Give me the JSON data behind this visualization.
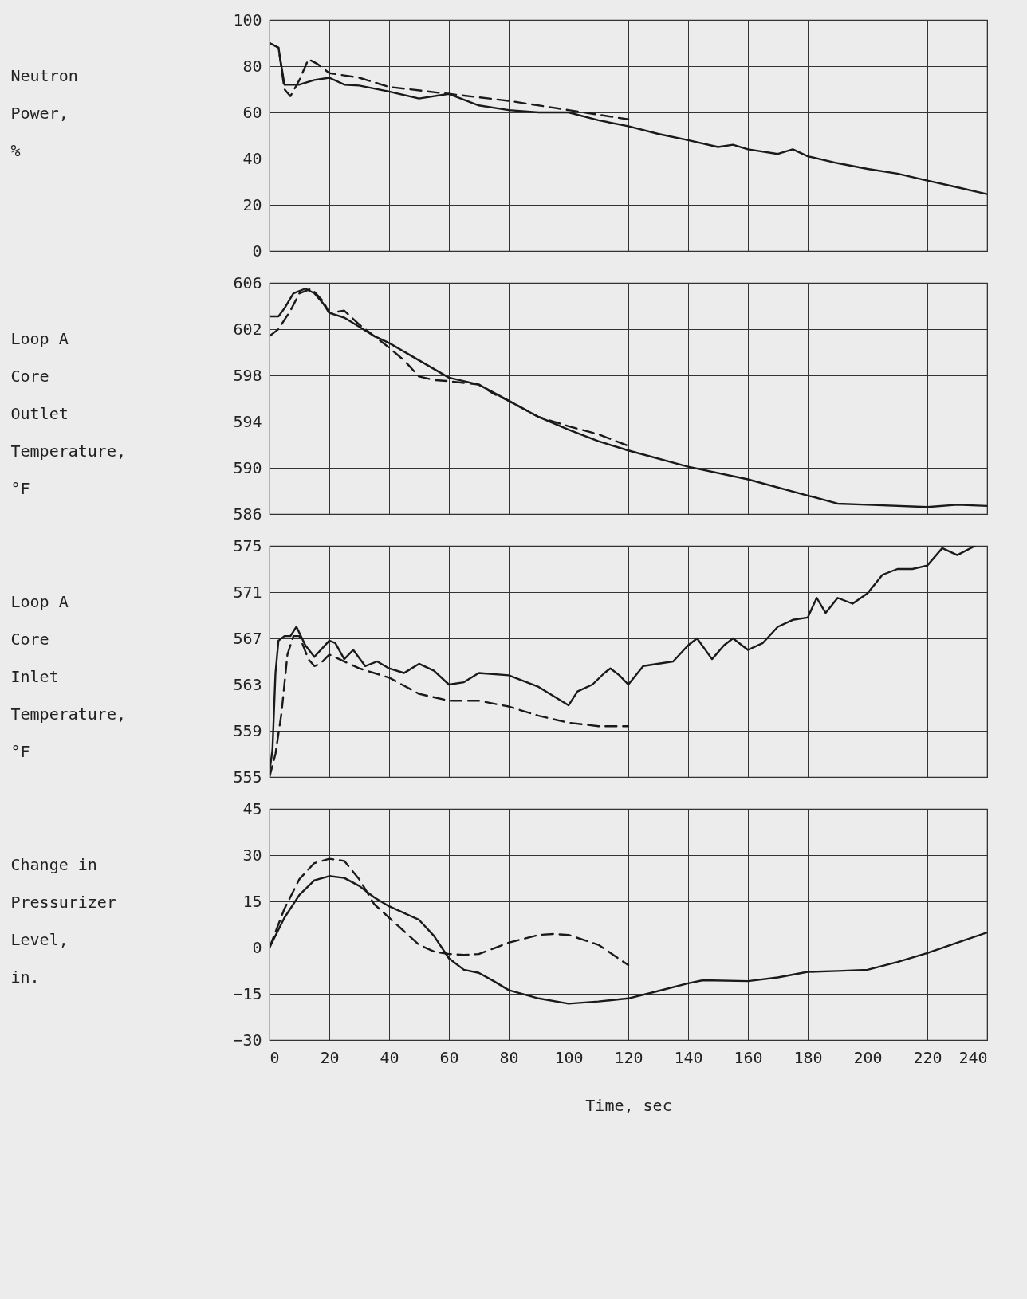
{
  "chart_data": [
    {
      "type": "line",
      "ylabel": "Neutron\nPower,\n%",
      "xlim": [
        0,
        240
      ],
      "xticks": [
        0,
        20,
        40,
        60,
        80,
        100,
        120,
        140,
        160,
        180,
        200,
        220,
        240
      ],
      "ylim": [
        0,
        100
      ],
      "yticks": [
        0,
        20,
        40,
        60,
        80,
        100
      ],
      "grid": true,
      "tick_labels": "y",
      "series": [
        {
          "color": "#1a1a1a",
          "line_style": "solid",
          "x": [
            0,
            3,
            5,
            10,
            15,
            20,
            25,
            30,
            40,
            50,
            60,
            70,
            80,
            90,
            100,
            110,
            120,
            130,
            140,
            150,
            155,
            160,
            170,
            175,
            180,
            190,
            200,
            210,
            220,
            230,
            240
          ],
          "values": [
            90,
            88,
            72,
            72,
            74,
            75,
            72,
            71.6,
            69,
            66,
            68,
            63,
            61,
            60,
            60,
            56.6,
            54,
            50.7,
            48,
            45,
            46,
            44,
            42,
            44,
            41,
            38,
            35.5,
            33.5,
            30.5,
            27.6,
            24.6
          ]
        },
        {
          "color": "#1a1a1a",
          "line_style": "dashed",
          "x": [
            0,
            3,
            5,
            7,
            10,
            13,
            16,
            20,
            25,
            30,
            40,
            60,
            80,
            100,
            120
          ],
          "values": [
            90,
            88,
            70,
            67,
            74,
            83,
            81,
            77,
            76,
            75,
            71,
            68,
            65,
            61,
            57
          ]
        }
      ]
    },
    {
      "type": "line",
      "ylabel": "Loop A\nCore\nOutlet\nTemperature,\n°F",
      "xlim": [
        0,
        240
      ],
      "xticks": [
        0,
        20,
        40,
        60,
        80,
        100,
        120,
        140,
        160,
        180,
        200,
        220,
        240
      ],
      "ylim": [
        586,
        606
      ],
      "yticks": [
        586,
        590,
        594,
        598,
        602,
        606
      ],
      "grid": true,
      "tick_labels": "y",
      "series": [
        {
          "color": "#1a1a1a",
          "line_style": "solid",
          "x": [
            0,
            3,
            5,
            8,
            12,
            15,
            18,
            20,
            25,
            30,
            35,
            40,
            50,
            60,
            70,
            80,
            90,
            100,
            110,
            120,
            140,
            160,
            180,
            190,
            200,
            220,
            230,
            240
          ],
          "values": [
            603.1,
            603.1,
            603.8,
            605.1,
            605.5,
            605.1,
            604.2,
            603.4,
            603,
            602.2,
            601.4,
            600.8,
            599.3,
            597.8,
            597.2,
            595.8,
            594.4,
            593.3,
            592.3,
            591.5,
            590.1,
            589,
            587.6,
            586.9,
            586.8,
            586.6,
            586.8,
            586.7
          ]
        },
        {
          "color": "#1a1a1a",
          "line_style": "dashed",
          "x": [
            0,
            3,
            7,
            10,
            14,
            18,
            20,
            25,
            30,
            40,
            45,
            50,
            55,
            60,
            70,
            75,
            80,
            90,
            100,
            110,
            120
          ],
          "values": [
            601.4,
            602,
            603.6,
            605.1,
            605.5,
            604.4,
            603.4,
            603.6,
            602.4,
            600.4,
            599.3,
            597.9,
            597.6,
            597.5,
            597.2,
            596.4,
            595.8,
            594.4,
            593.6,
            592.9,
            591.9
          ]
        }
      ]
    },
    {
      "type": "line",
      "ylabel": "Loop A\nCore\nInlet\nTemperature,\n°F",
      "xlim": [
        0,
        240
      ],
      "xticks": [
        0,
        20,
        40,
        60,
        80,
        100,
        120,
        140,
        160,
        180,
        200,
        220,
        240
      ],
      "ylim": [
        555,
        575
      ],
      "yticks": [
        555,
        559,
        563,
        567,
        571,
        575
      ],
      "grid": true,
      "tick_labels": "y",
      "series": [
        {
          "color": "#1a1a1a",
          "line_style": "solid",
          "x": [
            0,
            1,
            2,
            3,
            5,
            7,
            9,
            12,
            15,
            20,
            22,
            25,
            28,
            32,
            36,
            40,
            45,
            50,
            55,
            60,
            65,
            70,
            80,
            90,
            100,
            103,
            108,
            112,
            114,
            117,
            120,
            125,
            135,
            140,
            143,
            148,
            152,
            155,
            160,
            165,
            170,
            175,
            180,
            183,
            186,
            190,
            195,
            200,
            205,
            210,
            215,
            220,
            225,
            230,
            236
          ],
          "values": [
            555.4,
            557.4,
            564,
            566.8,
            567.2,
            567.2,
            568,
            566.4,
            565.4,
            566.8,
            566.6,
            565.2,
            566,
            564.6,
            565,
            564.4,
            564,
            564.8,
            564.2,
            563,
            563.2,
            564,
            563.8,
            562.8,
            561.2,
            562.4,
            563,
            564,
            564.4,
            563.8,
            563,
            564.6,
            565,
            566.4,
            567,
            565.2,
            566.4,
            567,
            566,
            566.6,
            568,
            568.6,
            568.8,
            570.5,
            569.2,
            570.5,
            570,
            570.9,
            572.5,
            573,
            573,
            573.3,
            574.8,
            574.2,
            575
          ]
        },
        {
          "color": "#1a1a1a",
          "line_style": "dashed",
          "x": [
            0,
            2,
            4,
            6,
            8,
            10,
            13,
            15,
            17,
            20,
            30,
            40,
            50,
            60,
            70,
            80,
            90,
            100,
            110,
            120
          ],
          "values": [
            555,
            557,
            560.5,
            565.6,
            567.2,
            567.2,
            565.2,
            564.6,
            564.8,
            565.6,
            564.4,
            563.6,
            562.2,
            561.6,
            561.6,
            561.1,
            560.3,
            559.7,
            559.4,
            559.4
          ]
        }
      ]
    },
    {
      "type": "line",
      "xlabel": "Time, sec",
      "ylabel": "Change in\nPressurizer\nLevel,\nin.",
      "xlim": [
        0,
        240
      ],
      "xticks": [
        0,
        20,
        40,
        60,
        80,
        100,
        120,
        140,
        160,
        180,
        200,
        220,
        240
      ],
      "ylim": [
        -30,
        45
      ],
      "yticks": [
        -30,
        -15,
        0,
        15,
        30,
        45
      ],
      "grid": true,
      "series": [
        {
          "color": "#1a1a1a",
          "line_style": "solid",
          "x": [
            0,
            5,
            10,
            15,
            20,
            25,
            30,
            35,
            40,
            45,
            50,
            55,
            60,
            65,
            70,
            75,
            80,
            90,
            100,
            110,
            120,
            130,
            140,
            145,
            160,
            170,
            180,
            190,
            200,
            210,
            220,
            230,
            240
          ],
          "values": [
            0,
            9.7,
            17.1,
            21.8,
            23.2,
            22.6,
            20,
            16.3,
            13.4,
            11.2,
            9,
            3.8,
            -3.5,
            -7.2,
            -8.2,
            -10.9,
            -13.8,
            -16.5,
            -18.2,
            -17.5,
            -16.5,
            -14.1,
            -11.6,
            -10.6,
            -10.9,
            -9.7,
            -7.9,
            -7.6,
            -7.2,
            -4.7,
            -1.8,
            1.6,
            4.9
          ]
        },
        {
          "color": "#1a1a1a",
          "line_style": "dashed",
          "x": [
            0,
            5,
            10,
            15,
            20,
            25,
            30,
            35,
            40,
            45,
            50,
            55,
            60,
            65,
            70,
            80,
            90,
            95,
            100,
            110,
            120
          ],
          "values": [
            0,
            12.6,
            22.2,
            27.4,
            28.8,
            28.1,
            22.2,
            14.1,
            9.7,
            5.3,
            0.9,
            -1.3,
            -2.1,
            -2.4,
            -2.1,
            1.6,
            4.1,
            4.4,
            4.1,
            0.9,
            -5.7
          ]
        }
      ]
    }
  ]
}
